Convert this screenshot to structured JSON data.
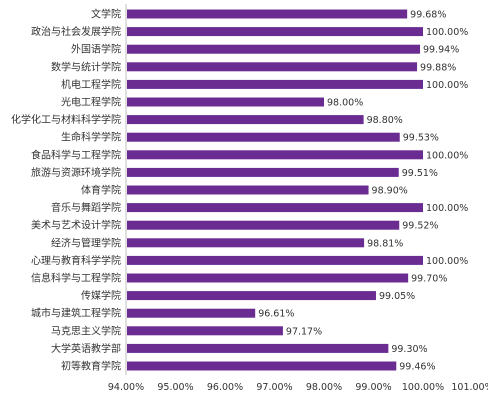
{
  "chart_data": {
    "type": "bar",
    "orientation": "horizontal",
    "categories": [
      "文学院",
      "政治与社会发展学院",
      "外国语学院",
      "数学与统计学院",
      "机电工程学院",
      "光电工程学院",
      "化学化工与材料科学学院",
      "生命科学学院",
      "食品科学与工程学院",
      "旅游与资源环境学院",
      "体育学院",
      "音乐与舞蹈学院",
      "美术与艺术设计学院",
      "经济与管理学院",
      "心理与教育科学学院",
      "信息科学与工程学院",
      "传媒学院",
      "城市与建筑工程学院",
      "马克思主义学院",
      "大学英语教学部",
      "初等教育学院"
    ],
    "values": [
      99.68,
      100.0,
      99.94,
      99.88,
      100.0,
      98.0,
      98.8,
      99.53,
      100.0,
      99.51,
      98.9,
      100.0,
      99.52,
      98.81,
      100.0,
      99.7,
      99.05,
      96.61,
      97.17,
      99.3,
      99.46
    ],
    "value_labels": [
      "99.68%",
      "100.00%",
      "99.94%",
      "99.88%",
      "100.00%",
      "98.00%",
      "98.80%",
      "99.53%",
      "100.00%",
      "99.51%",
      "98.90%",
      "100.00%",
      "99.52%",
      "98.81%",
      "100.00%",
      "99.70%",
      "99.05%",
      "96.61%",
      "97.17%",
      "99.30%",
      "99.46%"
    ],
    "xlim": [
      94,
      101
    ],
    "ticks": [
      94,
      95,
      96,
      97,
      98,
      99,
      100,
      101
    ],
    "tick_labels": [
      "94.00%",
      "95.00%",
      "96.00%",
      "97.00%",
      "98.00%",
      "99.00%",
      "100.00%",
      "101.00%"
    ],
    "bar_color": "#6a2c91",
    "grid": false,
    "legend": "none",
    "title": "",
    "xlabel": "",
    "ylabel": ""
  }
}
